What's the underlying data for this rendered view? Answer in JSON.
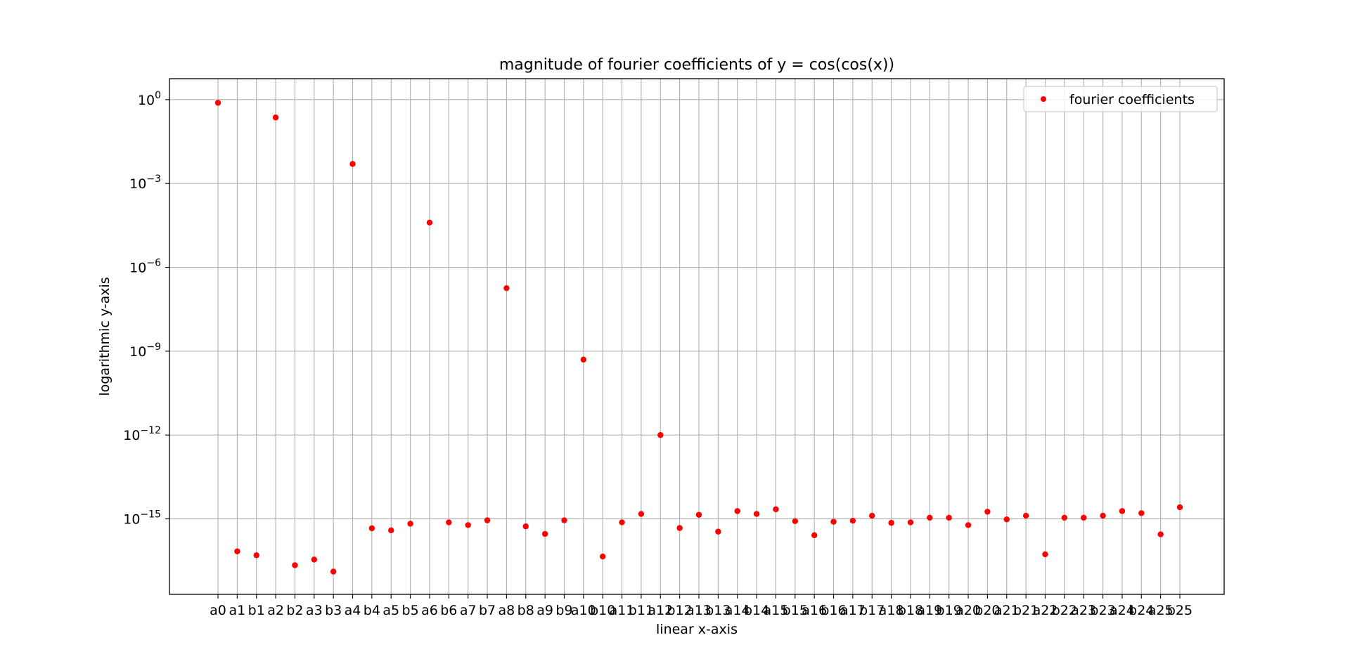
{
  "chart_data": {
    "type": "scatter",
    "title": "magnitude of fourier coefficients of y = cos(cos(x))",
    "xlabel": "linear x-axis",
    "ylabel": "logarithmic y-axis",
    "yscale": "log",
    "ylim_exponents": [
      -17.7,
      0.75
    ],
    "grid": true,
    "legend_position": "upper right",
    "categories": [
      "a0",
      "a1",
      "b1",
      "a2",
      "b2",
      "a3",
      "b3",
      "a4",
      "b4",
      "a5",
      "b5",
      "a6",
      "b6",
      "a7",
      "b7",
      "a8",
      "b8",
      "a9",
      "b9",
      "a10",
      "b10",
      "a11",
      "b11",
      "a12",
      "b12",
      "a13",
      "b13",
      "a14",
      "b14",
      "a15",
      "b15",
      "a16",
      "b16",
      "a17",
      "b17",
      "a18",
      "b18",
      "a19",
      "b19",
      "a20",
      "b20",
      "a21",
      "b21",
      "a22",
      "b22",
      "a23",
      "b23",
      "a24",
      "b24",
      "a25",
      "b25"
    ],
    "y_ticks": [
      {
        "base": "10",
        "exp": "0",
        "value": 1
      },
      {
        "base": "10",
        "exp": "−3",
        "value": 0.001
      },
      {
        "base": "10",
        "exp": "−6",
        "value": 1e-06
      },
      {
        "base": "10",
        "exp": "−9",
        "value": 1e-09
      },
      {
        "base": "10",
        "exp": "−12",
        "value": 1e-12
      },
      {
        "base": "10",
        "exp": "−15",
        "value": 1e-15
      }
    ],
    "series": [
      {
        "name": "fourier coefficients",
        "color": "#ff0000",
        "values": [
          0.77,
          6.9e-17,
          5e-17,
          0.23,
          2.2e-17,
          3.5e-17,
          1.3e-17,
          0.005,
          4.6e-16,
          3.9e-16,
          6.7e-16,
          4e-05,
          7.5e-16,
          6e-16,
          8.9e-16,
          1.8e-07,
          5.4e-16,
          2.9e-16,
          8.9e-16,
          5e-10,
          4.5e-17,
          7.5e-16,
          1.5e-15,
          1e-12,
          4.7e-16,
          1.4e-15,
          3.5e-16,
          1.9e-15,
          1.5e-15,
          2.2e-15,
          8.3e-16,
          2.6e-16,
          7.9e-16,
          8.6e-16,
          1.3e-15,
          7.2e-16,
          7.5e-16,
          1.1e-15,
          1.1e-15,
          6e-16,
          1.8e-15,
          9.6e-16,
          1.3e-15,
          5.4e-17,
          1.1e-15,
          1.1e-15,
          1.3e-15,
          1.9e-15,
          1.6e-15,
          2.8e-16,
          2.6e-15
        ]
      }
    ]
  }
}
